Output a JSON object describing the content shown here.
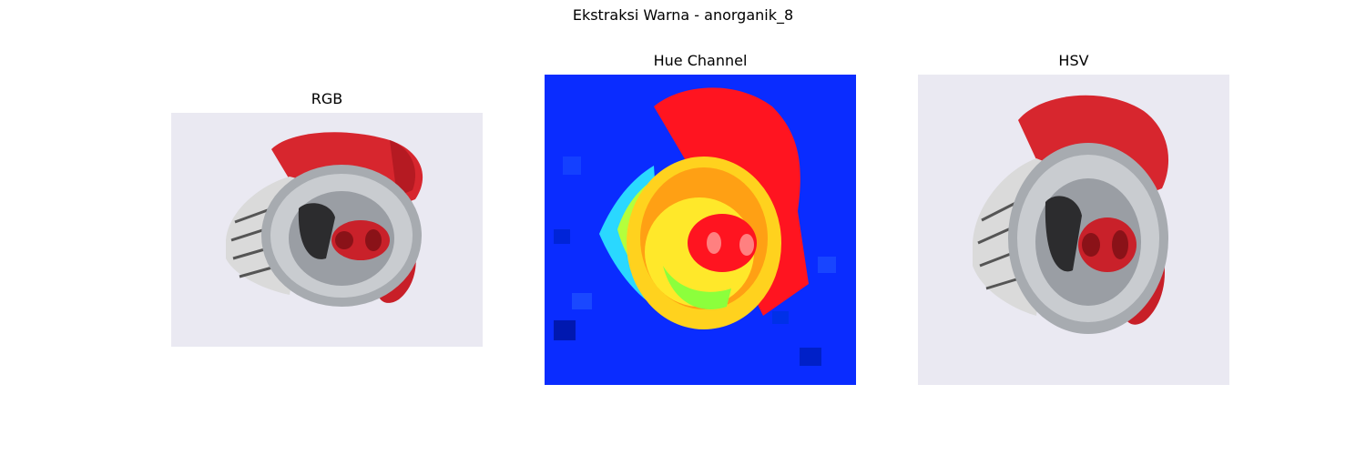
{
  "figure": {
    "title": "Ekstraksi Warna - anorganik_8"
  },
  "panels": [
    {
      "title": "RGB",
      "content": "crushed red aluminium soda can, top view, on white background",
      "colors": {
        "background": "#eae9f2",
        "can_red": "#d7262e",
        "metal": "#b9bcc0"
      }
    },
    {
      "title": "Hue Channel",
      "content": "false-color hue map of the crushed can",
      "colors": {
        "background": "#0a2cff",
        "red": "#ff1420",
        "yellow": "#ffd21e",
        "green": "#b4ff3c"
      }
    },
    {
      "title": "HSV",
      "content": "crushed red aluminium soda can, top view, on white background",
      "colors": {
        "background": "#eae9f2",
        "can_red": "#d7262e",
        "metal": "#b9bcc0"
      }
    }
  ]
}
